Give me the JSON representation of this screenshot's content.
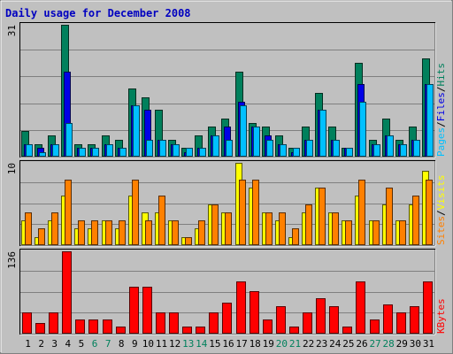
{
  "title": "Daily usage for December 2008",
  "colors": {
    "background": "#c0c0c0",
    "title": "#0000c0",
    "hits": "#00805c",
    "files": "#0000e6",
    "pages": "#00c0ff",
    "visits": "#ffff00",
    "sites": "#ff8000",
    "kbytes": "#ff0000",
    "weekend_label": "#00805c",
    "weekday_label": "#000000"
  },
  "chart_data": [
    {
      "type": "bar",
      "name": "hits-files-pages",
      "categories": [
        "1",
        "2",
        "3",
        "4",
        "5",
        "6",
        "7",
        "8",
        "9",
        "10",
        "11",
        "12",
        "13",
        "14",
        "15",
        "16",
        "17",
        "18",
        "19",
        "20",
        "21",
        "22",
        "23",
        "24",
        "25",
        "26",
        "27",
        "28",
        "29",
        "30",
        "31"
      ],
      "weekend_days": [
        "6",
        "7",
        "13",
        "14",
        "20",
        "21",
        "27",
        "28"
      ],
      "ymax_label": "31",
      "ylim": [
        0,
        31
      ],
      "legend": [
        "Pages",
        "Files",
        "Hits"
      ],
      "series": [
        {
          "name": "Hits",
          "values": [
            6,
            3,
            5,
            31,
            3,
            3,
            5,
            4,
            16,
            14,
            11,
            4,
            2,
            5,
            7,
            9,
            20,
            8,
            7,
            5,
            2,
            7,
            15,
            7,
            2,
            22,
            4,
            9,
            4,
            7,
            23
          ]
        },
        {
          "name": "Files",
          "values": [
            3,
            2,
            3,
            20,
            2,
            2,
            3,
            2,
            12,
            11,
            4,
            3,
            1,
            2,
            5,
            7,
            13,
            7,
            5,
            3,
            1,
            4,
            11,
            4,
            2,
            17,
            3,
            5,
            3,
            4,
            17
          ]
        },
        {
          "name": "Pages",
          "values": [
            3,
            1,
            3,
            8,
            2,
            2,
            3,
            2,
            12,
            4,
            4,
            3,
            2,
            2,
            5,
            4,
            12,
            7,
            4,
            3,
            2,
            4,
            11,
            4,
            2,
            13,
            3,
            5,
            3,
            4,
            17
          ]
        }
      ]
    },
    {
      "type": "bar",
      "name": "visits-sites",
      "categories": [
        "1",
        "2",
        "3",
        "4",
        "5",
        "6",
        "7",
        "8",
        "9",
        "10",
        "11",
        "12",
        "13",
        "14",
        "15",
        "16",
        "17",
        "18",
        "19",
        "20",
        "21",
        "22",
        "23",
        "24",
        "25",
        "26",
        "27",
        "28",
        "29",
        "30",
        "31"
      ],
      "ymax_label": "10",
      "ylim": [
        0,
        10
      ],
      "legend": [
        "Sites",
        "Visits"
      ],
      "series": [
        {
          "name": "Visits",
          "values": [
            3,
            1,
            3,
            6,
            2,
            2,
            3,
            2,
            6,
            4,
            4,
            3,
            1,
            2,
            5,
            4,
            10,
            7,
            4,
            3,
            1,
            4,
            7,
            4,
            3,
            6,
            3,
            5,
            3,
            5,
            9
          ]
        },
        {
          "name": "Sites",
          "values": [
            4,
            2,
            4,
            8,
            3,
            3,
            3,
            3,
            8,
            3,
            6,
            3,
            1,
            3,
            5,
            4,
            8,
            8,
            4,
            4,
            2,
            5,
            7,
            4,
            3,
            8,
            3,
            7,
            3,
            6,
            8
          ]
        }
      ]
    },
    {
      "type": "bar",
      "name": "kbytes",
      "categories": [
        "1",
        "2",
        "3",
        "4",
        "5",
        "6",
        "7",
        "8",
        "9",
        "10",
        "11",
        "12",
        "13",
        "14",
        "15",
        "16",
        "17",
        "18",
        "19",
        "20",
        "21",
        "22",
        "23",
        "24",
        "25",
        "26",
        "27",
        "28",
        "29",
        "30",
        "31"
      ],
      "ymax_label": "136",
      "ylim": [
        0,
        136
      ],
      "legend": [
        "KBytes"
      ],
      "series": [
        {
          "name": "KBytes",
          "values": [
            35,
            17,
            35,
            136,
            24,
            24,
            24,
            12,
            77,
            78,
            35,
            35,
            12,
            12,
            35,
            51,
            86,
            70,
            24,
            46,
            12,
            35,
            58,
            46,
            12,
            86,
            24,
            48,
            35,
            46,
            86
          ]
        }
      ]
    }
  ]
}
